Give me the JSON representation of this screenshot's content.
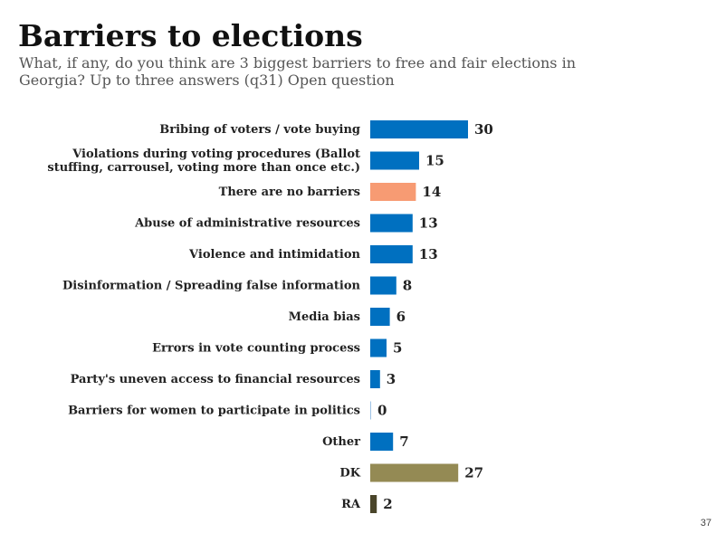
{
  "title": "Barriers to elections",
  "subtitle": "What, if any, do you think are 3 biggest barriers to free and fair elections in Georgia? Up to three answers (q31) Open question",
  "page_number": "37",
  "colors": {
    "default_bar": "#0070c0",
    "highlight_bar": "#f79b73",
    "dk_bar": "#948a54",
    "ra_bar": "#4a452a"
  },
  "chart_data": {
    "type": "bar",
    "orientation": "horizontal",
    "categories": [
      [
        "Bribing of voters / vote buying"
      ],
      [
        "Violations during voting procedures (Ballot",
        "stuffing, carrousel, voting more than once etc.)"
      ],
      [
        "There are no barriers"
      ],
      [
        "Abuse of administrative resources"
      ],
      [
        "Violence and intimidation"
      ],
      [
        "Disinformation / Spreading false information"
      ],
      [
        "Media bias"
      ],
      [
        "Errors in vote counting process"
      ],
      [
        "Party's uneven access to financial resources"
      ],
      [
        "Barriers for women to participate in politics"
      ],
      [
        "Other"
      ],
      [
        "DK"
      ],
      [
        "RA"
      ]
    ],
    "values": [
      30,
      15,
      14,
      13,
      13,
      8,
      6,
      5,
      3,
      0,
      7,
      27,
      2
    ],
    "bar_colors": [
      "#0070c0",
      "#0070c0",
      "#f79b73",
      "#0070c0",
      "#0070c0",
      "#0070c0",
      "#0070c0",
      "#0070c0",
      "#0070c0",
      "#0070c0",
      "#0070c0",
      "#948a54",
      "#4a452a"
    ],
    "data_labels": [
      "30",
      "15",
      "14",
      "13",
      "13",
      "8",
      "6",
      "5",
      "3",
      "0",
      "7",
      "27",
      "2"
    ],
    "xlim": [
      0,
      30
    ],
    "grid": false,
    "legend": "none"
  }
}
